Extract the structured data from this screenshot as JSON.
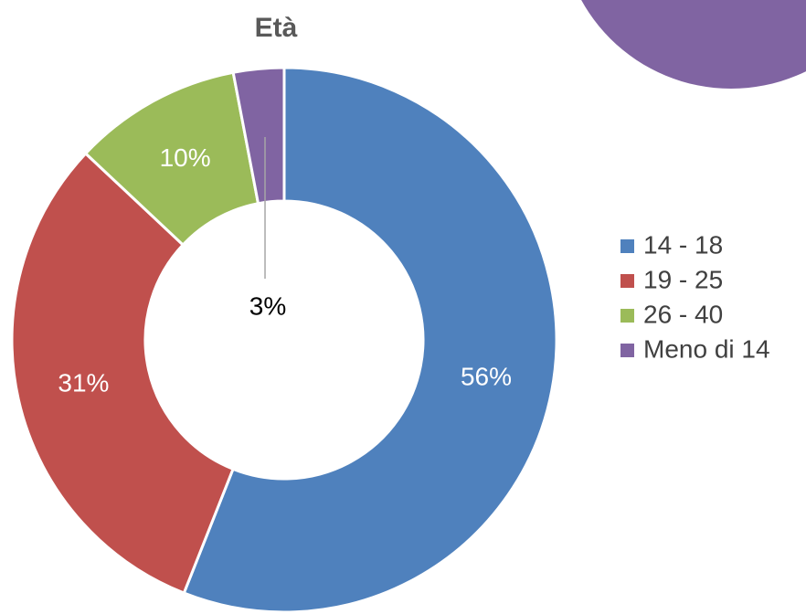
{
  "chart_data": {
    "type": "donut",
    "title": "Età",
    "categories": [
      "14 - 18",
      "19 - 25",
      "26 - 40",
      "Meno di 14"
    ],
    "values": [
      56,
      31,
      10,
      3
    ],
    "value_labels": [
      "56%",
      "31%",
      "10%",
      "3%"
    ],
    "colors": [
      "#4f81bd",
      "#c0504d",
      "#9bbb59",
      "#8064a2"
    ],
    "legend": "right"
  }
}
